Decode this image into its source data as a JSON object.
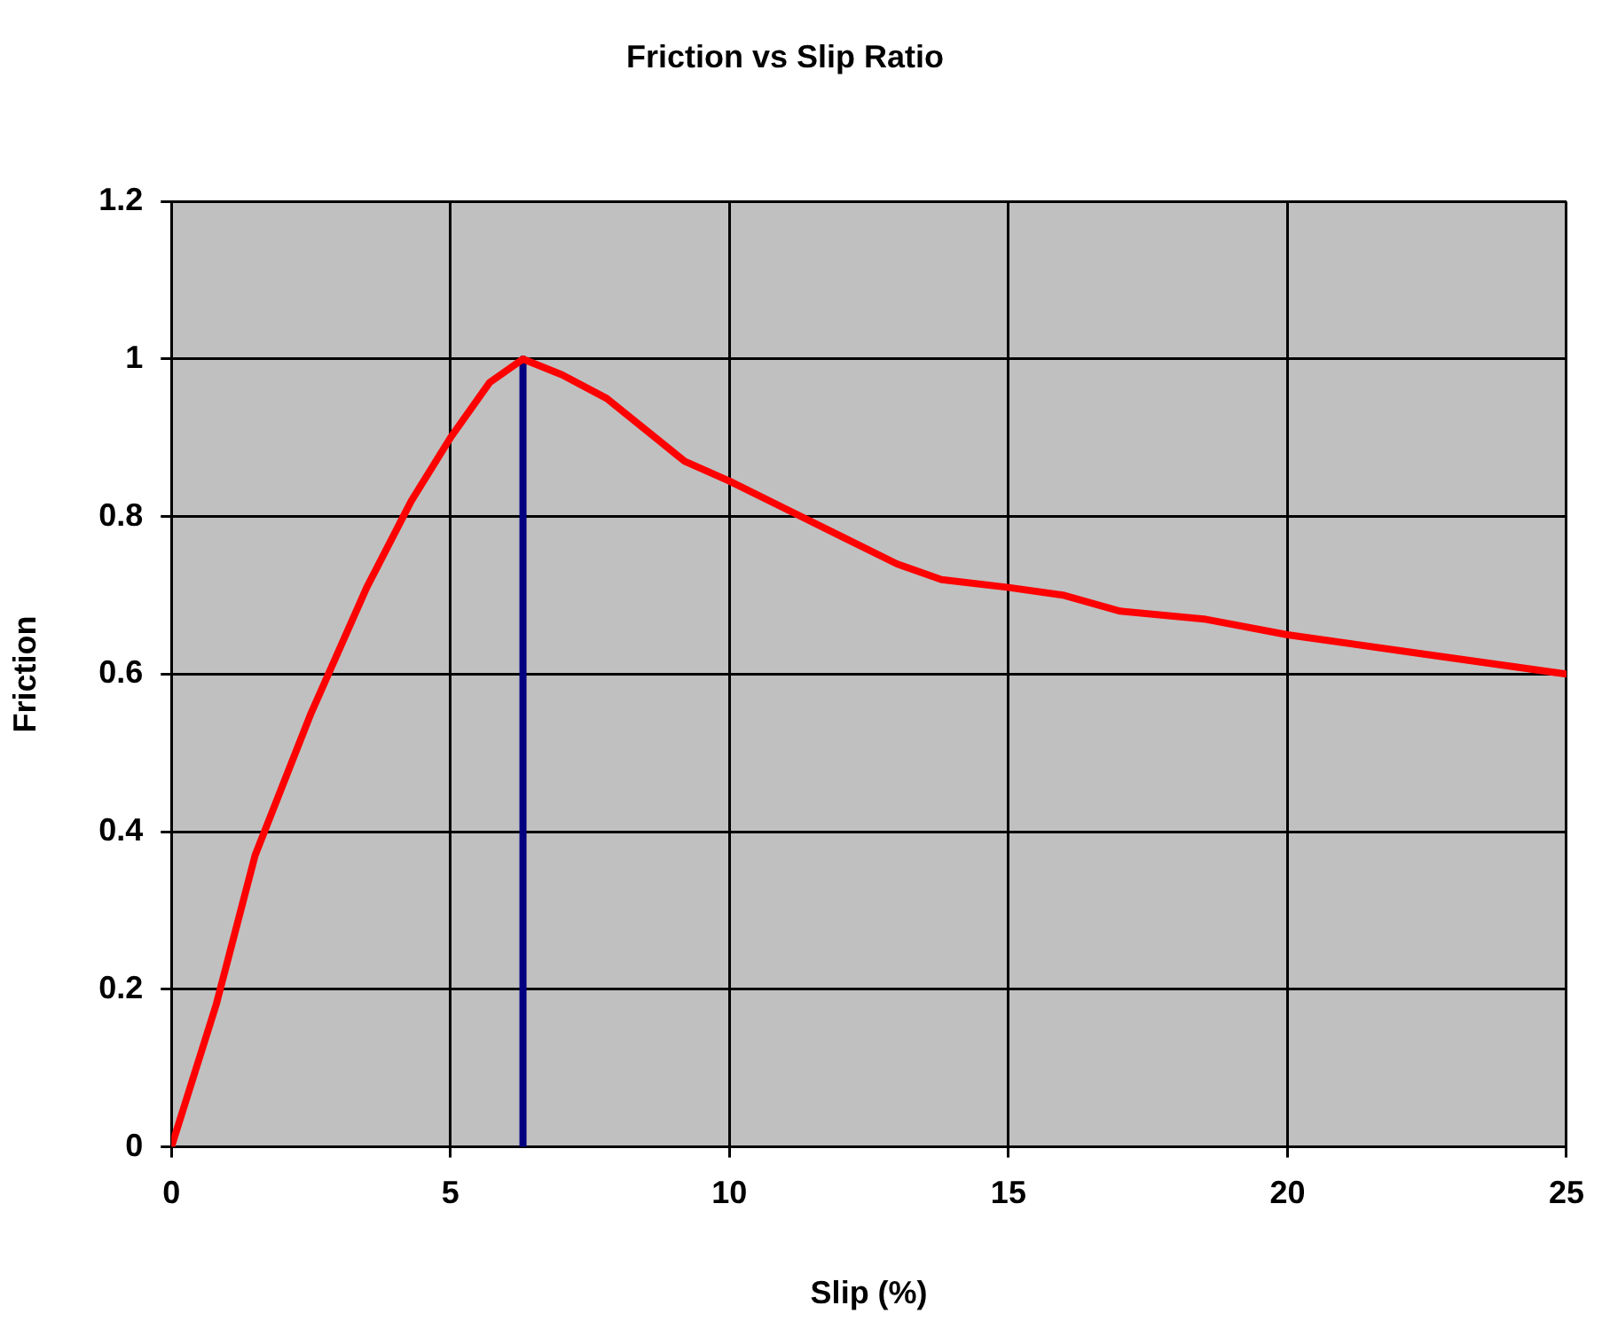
{
  "chart_data": {
    "type": "line",
    "title": "Friction vs Slip Ratio",
    "xlabel": "Slip (%)",
    "ylabel": "Friction",
    "series": [
      {
        "color": "#ff0000",
        "x": [
          0,
          0.8,
          1.5,
          2.5,
          3.5,
          4.3,
          5,
          5.7,
          6.3,
          7,
          7.8,
          8.5,
          9.2,
          10,
          11,
          12,
          13,
          13.8,
          15,
          16,
          17,
          18.5,
          20,
          22.5,
          25
        ],
        "values": [
          0,
          0.18,
          0.37,
          0.55,
          0.71,
          0.82,
          0.9,
          0.97,
          1.0,
          0.98,
          0.95,
          0.91,
          0.87,
          0.845,
          0.81,
          0.775,
          0.74,
          0.72,
          0.71,
          0.7,
          0.68,
          0.67,
          0.65,
          0.625,
          0.6
        ]
      },
      {
        "color": "#000080",
        "x": [
          6.3,
          6.3
        ],
        "values": [
          0,
          1.0
        ]
      }
    ],
    "xlim": [
      0,
      25
    ],
    "xticks": [
      0,
      5,
      10,
      15,
      20,
      25
    ],
    "ylim": [
      0,
      1.2
    ],
    "yticks": [
      0,
      0.2,
      0.4,
      0.6,
      0.8,
      1,
      1.2
    ],
    "grid": true,
    "legend": false,
    "marker": "none",
    "line_style": "solid"
  }
}
